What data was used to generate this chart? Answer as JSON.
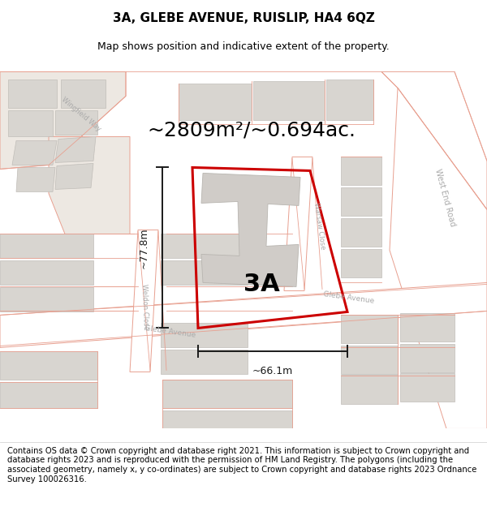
{
  "title": "3A, GLEBE AVENUE, RUISLIP, HA4 6QZ",
  "subtitle": "Map shows position and indicative extent of the property.",
  "area_label": "~2809m²/~0.694ac.",
  "width_label": "~66.1m",
  "height_label": "~77.8m",
  "property_label": "3A",
  "footer": "Contains OS data © Crown copyright and database right 2021. This information is subject to Crown copyright and database rights 2023 and is reproduced with the permission of HM Land Registry. The polygons (including the associated geometry, namely x, y co-ordinates) are subject to Crown copyright and database rights 2023 Ordnance Survey 100026316.",
  "map_bg": "#f2ede8",
  "road_white": "#ffffff",
  "bld_fill": "#d8d5d0",
  "bld_edge": "#c0bdb8",
  "pink_line": "#e8a090",
  "pink_fill": "#f5e8e5",
  "property_stroke": "#cc0000",
  "dim_color": "#1a1a1a",
  "road_label_color": "#aaaaaa",
  "title_fontsize": 11,
  "subtitle_fontsize": 9,
  "area_fontsize": 18,
  "prop_label_fontsize": 22,
  "footer_fontsize": 7.2
}
